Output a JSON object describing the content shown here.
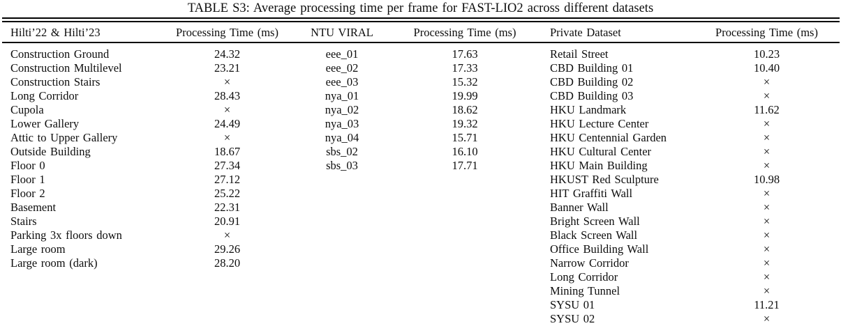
{
  "title": "TABLE S3: Average processing time per frame for FAST-LIO2 across different datasets",
  "table": {
    "missing_symbol": "×",
    "groups": [
      {
        "name_header": "Hilti’22 & Hilti’23",
        "time_header": "Processing Time (ms)",
        "rows": [
          {
            "name": "Construction Ground",
            "time": "24.32"
          },
          {
            "name": "Construction Multilevel",
            "time": "23.21"
          },
          {
            "name": "Construction Stairs",
            "time": "×"
          },
          {
            "name": "Long Corridor",
            "time": "28.43"
          },
          {
            "name": "Cupola",
            "time": "×"
          },
          {
            "name": "Lower Gallery",
            "time": "24.49"
          },
          {
            "name": "Attic to Upper Gallery",
            "time": "×"
          },
          {
            "name": "Outside Building",
            "time": "18.67"
          },
          {
            "name": "Floor 0",
            "time": "27.34"
          },
          {
            "name": "Floor 1",
            "time": "27.12"
          },
          {
            "name": "Floor 2",
            "time": "25.22"
          },
          {
            "name": "Basement",
            "time": "22.31"
          },
          {
            "name": "Stairs",
            "time": "20.91"
          },
          {
            "name": "Parking 3x floors down",
            "time": "×"
          },
          {
            "name": "Large room",
            "time": "29.26"
          },
          {
            "name": "Large room (dark)",
            "time": "28.20"
          }
        ]
      },
      {
        "name_header": "NTU VIRAL",
        "time_header": "Processing Time (ms)",
        "rows": [
          {
            "name": "eee_01",
            "time": "17.63"
          },
          {
            "name": "eee_02",
            "time": "17.33"
          },
          {
            "name": "eee_03",
            "time": "15.32"
          },
          {
            "name": "nya_01",
            "time": "19.99"
          },
          {
            "name": "nya_02",
            "time": "18.62"
          },
          {
            "name": "nya_03",
            "time": "19.32"
          },
          {
            "name": "nya_04",
            "time": "15.71"
          },
          {
            "name": "sbs_02",
            "time": "16.10"
          },
          {
            "name": "sbs_03",
            "time": "17.71"
          }
        ]
      },
      {
        "name_header": "Private Dataset",
        "time_header": "Processing Time (ms)",
        "rows": [
          {
            "name": "Retail Street",
            "time": "10.23"
          },
          {
            "name": "CBD Building 01",
            "time": "10.40"
          },
          {
            "name": "CBD Building 02",
            "time": "×"
          },
          {
            "name": "CBD Building 03",
            "time": "×"
          },
          {
            "name": "HKU Landmark",
            "time": "11.62"
          },
          {
            "name": "HKU Lecture Center",
            "time": "×"
          },
          {
            "name": "HKU Centennial Garden",
            "time": "×"
          },
          {
            "name": "HKU Cultural Center",
            "time": "×"
          },
          {
            "name": "HKU Main Building",
            "time": "×"
          },
          {
            "name": "HKUST Red Sculpture",
            "time": "10.98"
          },
          {
            "name": "HIT Graffiti Wall",
            "time": "×"
          },
          {
            "name": "Banner Wall",
            "time": "×"
          },
          {
            "name": "Bright Screen Wall",
            "time": "×"
          },
          {
            "name": "Black Screen Wall",
            "time": "×"
          },
          {
            "name": "Office Building Wall",
            "time": "×"
          },
          {
            "name": "Narrow Corridor",
            "time": "×"
          },
          {
            "name": "Long Corridor",
            "time": "×"
          },
          {
            "name": "Mining Tunnel",
            "time": "×"
          },
          {
            "name": "SYSU 01",
            "time": "11.21"
          },
          {
            "name": "SYSU 02",
            "time": "×"
          }
        ]
      }
    ]
  }
}
